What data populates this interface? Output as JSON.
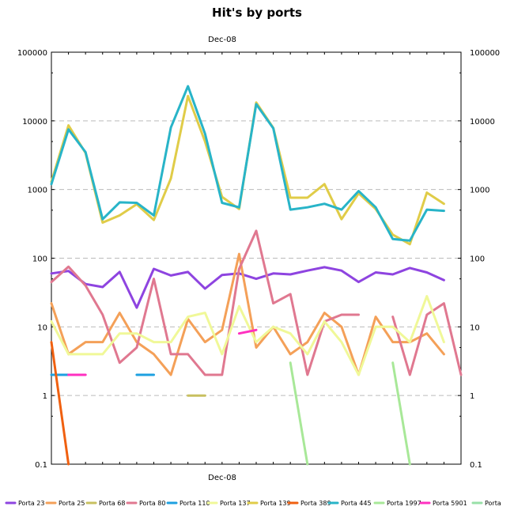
{
  "chart_data": {
    "type": "line",
    "title": "Hit's by ports",
    "x_label_top": "Dec-08",
    "x_label_bottom": "Dec-08",
    "y_scale": "log",
    "ylim": [
      0.1,
      100000
    ],
    "y_ticks": [
      "100000",
      "10000",
      "1000",
      "100",
      "10",
      "1",
      "0.1"
    ],
    "grid": true,
    "legend_position": "bottom",
    "x": [
      1,
      2,
      3,
      4,
      5,
      6,
      7,
      8,
      9,
      10,
      11,
      12,
      13,
      14,
      15,
      16,
      17,
      18,
      19,
      20,
      21,
      22,
      23,
      24,
      25
    ],
    "series": [
      {
        "name": "Porta 23",
        "color": "#8e44e0",
        "values": [
          60,
          65,
          42,
          38,
          63,
          19,
          70,
          56,
          63,
          36,
          57,
          60,
          50,
          60,
          58,
          66,
          74,
          66,
          45,
          62,
          58,
          72,
          62,
          48,
          null
        ]
      },
      {
        "name": "Porta 25",
        "color": "#f4a058",
        "values": [
          22,
          4,
          6,
          6,
          16,
          6,
          4,
          2,
          13,
          6,
          9,
          115,
          5,
          10,
          4,
          6,
          16,
          10,
          2,
          14,
          6,
          6,
          8,
          4,
          null
        ]
      },
      {
        "name": "Porta 68",
        "color": "#c8c060",
        "values": [
          null,
          null,
          null,
          null,
          null,
          null,
          null,
          null,
          1,
          1,
          null,
          null,
          null,
          null,
          null,
          null,
          null,
          null,
          null,
          null,
          null,
          null,
          null,
          null,
          null
        ]
      },
      {
        "name": "Porta 80",
        "color": "#e07890",
        "values": [
          45,
          75,
          40,
          15,
          3,
          5,
          50,
          4,
          4,
          2,
          2,
          70,
          250,
          22,
          30,
          2,
          12,
          15,
          15,
          null,
          14,
          2,
          15,
          22,
          2
        ]
      },
      {
        "name": "Porta 110",
        "color": "#1ea0e0",
        "values": [
          2,
          2,
          null,
          null,
          null,
          2,
          2,
          null,
          null,
          null,
          null,
          null,
          null,
          null,
          null,
          null,
          null,
          null,
          null,
          null,
          null,
          null,
          null,
          null,
          null
        ]
      },
      {
        "name": "Porta 137",
        "color": "#f0f898",
        "values": [
          12,
          4,
          4,
          4,
          8,
          8,
          6,
          6,
          14,
          16,
          4,
          20,
          6,
          10,
          8,
          4,
          12,
          6,
          2,
          10,
          10,
          6,
          28,
          6,
          null
        ]
      },
      {
        "name": "Porta 139",
        "color": "#e0cc48",
        "values": [
          1300,
          8600,
          3400,
          330,
          420,
          610,
          360,
          1450,
          23000,
          5000,
          780,
          520,
          18500,
          7900,
          760,
          760,
          1200,
          370,
          880,
          520,
          220,
          160,
          900,
          620,
          null
        ]
      },
      {
        "name": "Porta 389",
        "color": "#f06010",
        "values": [
          6,
          0.1,
          null,
          null,
          null,
          null,
          null,
          null,
          null,
          null,
          null,
          null,
          null,
          null,
          null,
          null,
          null,
          null,
          null,
          null,
          null,
          null,
          null,
          null,
          null
        ]
      },
      {
        "name": "Porta 445",
        "color": "#28b4c8",
        "values": [
          1200,
          7500,
          3500,
          370,
          650,
          640,
          420,
          8000,
          32000,
          6500,
          640,
          550,
          17500,
          7800,
          510,
          550,
          620,
          510,
          950,
          550,
          190,
          180,
          510,
          490,
          null
        ]
      },
      {
        "name": "Porta 1997",
        "color": "#a8e898",
        "values": [
          null,
          null,
          null,
          null,
          null,
          null,
          null,
          null,
          null,
          null,
          null,
          null,
          null,
          null,
          3,
          0.1,
          null,
          null,
          null,
          null,
          3,
          0.1,
          null,
          null,
          null
        ]
      },
      {
        "name": "Porta 5901",
        "color": "#ff30c0",
        "values": [
          null,
          2,
          2,
          null,
          null,
          null,
          null,
          null,
          null,
          null,
          null,
          8,
          9,
          null,
          null,
          null,
          null,
          null,
          null,
          null,
          null,
          null,
          null,
          null,
          null
        ]
      },
      {
        "name": "Porta",
        "color": "#98e0a8",
        "values": [
          null,
          null,
          null,
          null,
          null,
          null,
          null,
          null,
          null,
          null,
          null,
          null,
          null,
          null,
          null,
          null,
          null,
          null,
          null,
          null,
          null,
          null,
          null,
          null,
          null
        ]
      }
    ]
  }
}
